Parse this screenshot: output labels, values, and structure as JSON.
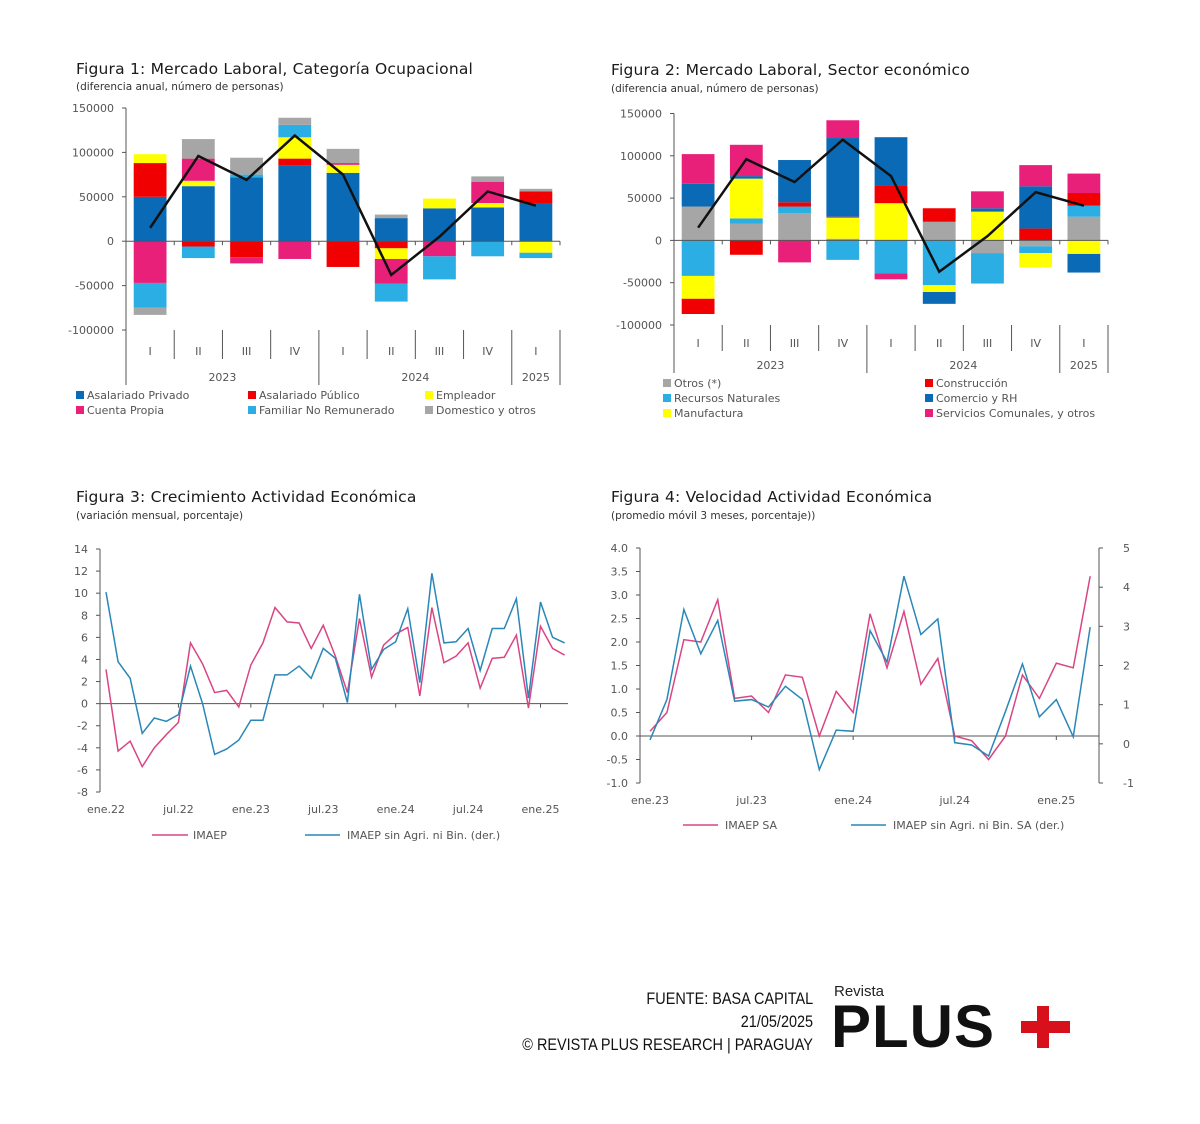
{
  "colors": {
    "blue": "#0a6ab5",
    "red": "#f00000",
    "yellow": "#ffff00",
    "pink": "#e8207a",
    "light_blue": "#2aaee3",
    "gray": "#a6a6a6",
    "line_black": "#111111",
    "line_pink": "#d94683",
    "line_blue": "#2a87b8"
  },
  "chart_data": [
    {
      "type": "bar",
      "stacked": true,
      "title": "Figura 1: Mercado Laboral, Categoría Ocupacional",
      "subtitle": "(diferencia anual, número de personas)",
      "categories": [
        "I",
        "II",
        "III",
        "IV",
        "I",
        "II",
        "III",
        "IV",
        "I"
      ],
      "years": [
        {
          "label": "2023",
          "span": 4
        },
        {
          "label": "2024",
          "span": 4
        },
        {
          "label": "2025",
          "span": 1
        }
      ],
      "ylim": [
        -100000,
        150000
      ],
      "yticks": [
        "150000",
        "100000",
        "50000",
        "0",
        "-50000",
        "-100000"
      ],
      "ytick_values": [
        150000,
        100000,
        50000,
        0,
        -50000,
        -100000
      ],
      "series": [
        {
          "name": "Asalariado Privado",
          "color": "#0a6ab5",
          "values": [
            50000,
            62000,
            72000,
            85000,
            77000,
            26000,
            37000,
            38000,
            43000
          ]
        },
        {
          "name": "Asalariado Público",
          "color": "#f00000",
          "values": [
            38000,
            -6000,
            -18000,
            8000,
            -29000,
            -8000,
            0,
            0,
            13000
          ]
        },
        {
          "name": "Empleador",
          "color": "#ffff00",
          "values": [
            10000,
            6000,
            0,
            24000,
            9000,
            -12000,
            11000,
            5000,
            -13000
          ]
        },
        {
          "name": "Cuenta Propia",
          "color": "#e8207a",
          "values": [
            -47000,
            25000,
            -7000,
            -20000,
            2000,
            -28000,
            -17000,
            24000,
            0
          ]
        },
        {
          "name": "Familiar No Remunerado",
          "color": "#2aaee3",
          "values": [
            -28000,
            -13000,
            3000,
            14000,
            0,
            -20000,
            -26000,
            -17000,
            -6000
          ]
        },
        {
          "name": "Domestico y otros",
          "color": "#a6a6a6",
          "values": [
            -8000,
            22000,
            19000,
            8000,
            16000,
            4000,
            0,
            6000,
            3000
          ]
        }
      ],
      "total_line": [
        15000,
        96000,
        69000,
        119000,
        75000,
        -38000,
        5000,
        56000,
        40000
      ],
      "legend_position": "bottom"
    },
    {
      "type": "bar",
      "stacked": true,
      "title": "Figura 2: Mercado Laboral, Sector económico",
      "subtitle": "(diferencia anual, número de personas)",
      "categories": [
        "I",
        "II",
        "III",
        "IV",
        "I",
        "II",
        "III",
        "IV",
        "I"
      ],
      "years": [
        {
          "label": "2023",
          "span": 4
        },
        {
          "label": "2024",
          "span": 4
        },
        {
          "label": "2025",
          "span": 1
        }
      ],
      "ylim": [
        -100000,
        150000
      ],
      "yticks": [
        "150000",
        "100000",
        "50000",
        "0",
        "-50000",
        "-100000"
      ],
      "ytick_values": [
        150000,
        100000,
        50000,
        0,
        -50000,
        -100000
      ],
      "series": [
        {
          "name": "Otros (*)",
          "color": "#a6a6a6",
          "values": [
            40000,
            20000,
            32000,
            2000,
            0,
            22000,
            -15000,
            -7000,
            28000
          ]
        },
        {
          "name": "Recursos Naturales",
          "color": "#2aaee3",
          "values": [
            -42000,
            6000,
            8000,
            -23000,
            -39000,
            -53000,
            -36000,
            -8000,
            13000
          ]
        },
        {
          "name": "Manufactura",
          "color": "#ffff00",
          "values": [
            -27000,
            47000,
            0,
            25000,
            44000,
            -8000,
            34000,
            -17000,
            -16000
          ]
        },
        {
          "name": "Construcción",
          "color": "#f00000",
          "values": [
            -18000,
            -17000,
            5000,
            1000,
            21000,
            16000,
            0,
            14000,
            15000
          ]
        },
        {
          "name": "Comercio y RH",
          "color": "#0a6ab5",
          "values": [
            27000,
            3000,
            50000,
            93000,
            57000,
            -14000,
            4000,
            50000,
            -22000
          ]
        },
        {
          "name": "Servicios Comunales, y otros",
          "color": "#e8207a",
          "values": [
            35000,
            37000,
            -26000,
            21000,
            -7000,
            0,
            20000,
            25000,
            23000
          ]
        }
      ],
      "total_line": [
        15000,
        96000,
        69000,
        119000,
        76000,
        -37000,
        5000,
        57000,
        41000
      ],
      "legend_position": "bottom"
    },
    {
      "type": "line",
      "title": "Figura 3: Crecimiento Actividad Económica",
      "subtitle": "(variación mensual, porcentaje)",
      "x_start": "ene.22",
      "xtick_labels": [
        "ene.22",
        "jul.22",
        "ene.23",
        "jul.23",
        "ene.24",
        "jul.24",
        "ene.25"
      ],
      "ylim": [
        -8,
        14
      ],
      "yticks": [
        "14",
        "12",
        "10",
        "8",
        "6",
        "4",
        "2",
        "0",
        "-2",
        "-4",
        "-6",
        "-8"
      ],
      "ytick_values": [
        14,
        12,
        10,
        8,
        6,
        4,
        2,
        0,
        -2,
        -4,
        -6,
        -8
      ],
      "series": [
        {
          "name": "IMAEP",
          "color": "#d94683",
          "axis": "left",
          "values": [
            3.1,
            -4.3,
            -3.4,
            -5.7,
            -4.0,
            -2.8,
            -1.7,
            5.5,
            3.6,
            1.0,
            1.2,
            -0.3,
            3.5,
            5.5,
            8.7,
            7.4,
            7.3,
            5.0,
            7.1,
            4.3,
            1.0,
            7.7,
            2.4,
            5.3,
            6.3,
            6.9,
            0.7,
            8.7,
            3.7,
            4.3,
            5.5,
            1.4,
            4.1,
            4.2,
            6.2,
            -0.4,
            7.0,
            5.0,
            4.4
          ]
        },
        {
          "name": "IMAEP sin Agri. ni Bin.  (der.)",
          "color": "#2a87b8",
          "axis": "left",
          "values": [
            10.1,
            3.8,
            2.3,
            -2.7,
            -1.3,
            -1.6,
            -1.0,
            3.4,
            0.0,
            -4.6,
            -4.1,
            -3.3,
            -1.5,
            -1.5,
            2.6,
            2.6,
            3.4,
            2.3,
            5.0,
            4.1,
            0.1,
            9.9,
            3.1,
            4.9,
            5.6,
            8.6,
            1.9,
            11.8,
            5.5,
            5.6,
            6.8,
            3.0,
            6.8,
            6.8,
            9.5,
            0.5,
            9.2,
            6.0,
            5.5
          ]
        }
      ],
      "legend_position": "bottom"
    },
    {
      "type": "line",
      "title": "Figura 4: Velocidad Actividad Económica",
      "subtitle": "(promedio móvil 3 meses, porcentaje))",
      "x_start": "ene.23",
      "xtick_labels": [
        "ene.23",
        "jul.23",
        "ene.24",
        "jul.24",
        "ene.25"
      ],
      "ylim": [
        -1.0,
        4.0
      ],
      "yticks": [
        "4.0",
        "3.5",
        "3.0",
        "2.5",
        "2.0",
        "1.5",
        "1.0",
        "0.5",
        "0.0",
        "-0.5",
        "-1.0"
      ],
      "ytick_values": [
        4,
        3.5,
        3,
        2.5,
        2,
        1.5,
        1,
        0.5,
        0,
        -0.5,
        -1
      ],
      "y2lim": [
        -1,
        5
      ],
      "y2ticks": [
        "5",
        "4",
        "3",
        "2",
        "1",
        "0",
        "-1"
      ],
      "y2tick_values": [
        5,
        4,
        3,
        2,
        1,
        0,
        -1
      ],
      "series": [
        {
          "name": "IMAEP SA",
          "color": "#d94683",
          "axis": "left",
          "values": [
            0.1,
            0.5,
            2.05,
            2.0,
            2.9,
            0.8,
            0.85,
            0.5,
            1.3,
            1.25,
            0.0,
            0.95,
            0.5,
            2.6,
            1.45,
            2.65,
            1.1,
            1.65,
            0.0,
            -0.1,
            -0.5,
            0.0,
            1.3,
            0.8,
            1.55,
            1.45,
            3.4
          ]
        },
        {
          "name": "IMAEP sin Agri. ni Bin. SA (der.)",
          "color": "#2a87b8",
          "axis": "right",
          "values": [
            0.1,
            1.13,
            3.43,
            2.3,
            3.15,
            1.09,
            1.13,
            0.94,
            1.47,
            1.13,
            -0.66,
            0.35,
            0.32,
            2.89,
            2.09,
            4.28,
            2.79,
            3.19,
            0.03,
            -0.03,
            -0.31,
            0.83,
            2.04,
            0.69,
            1.13,
            0.18,
            2.98
          ]
        }
      ],
      "legend_position": "bottom"
    }
  ],
  "footer": {
    "source": "FUENTE: BASA CAPITAL",
    "date": "21/05/2025",
    "copyright": "© REVISTA PLUS RESEARCH | PARAGUAY"
  },
  "logo": {
    "top": "Revista",
    "main": "PLUS"
  }
}
